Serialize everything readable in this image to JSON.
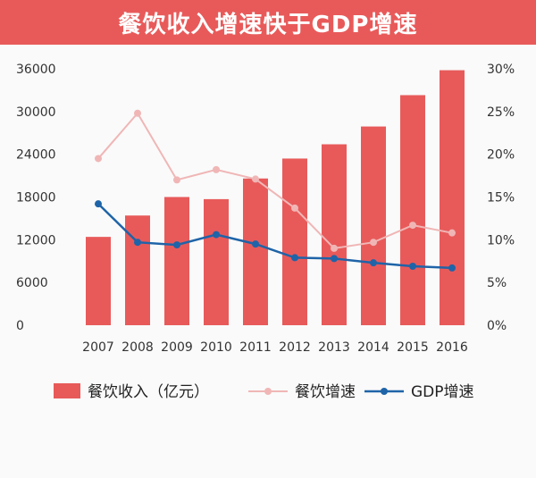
{
  "title": "餐饮收入增速快于GDP增速",
  "colors": {
    "title_bg": "#e85a5a",
    "bar": "#e85a5a",
    "pink_line": "#f0b6b6",
    "blue_line": "#1f64a8"
  },
  "chart_data": {
    "type": "bar",
    "title": "餐饮收入增速快于GDP增速",
    "categories": [
      "2007",
      "2008",
      "2009",
      "2010",
      "2011",
      "2012",
      "2013",
      "2014",
      "2015",
      "2016"
    ],
    "y_left": {
      "ylim": [
        0,
        36000
      ],
      "ticks": [
        "36000",
        "30000",
        "24000",
        "18000",
        "12000",
        "6000",
        "0"
      ],
      "tick_values": [
        36000,
        30000,
        24000,
        18000,
        12000,
        6000,
        0
      ]
    },
    "y_right": {
      "ylim": [
        0,
        30
      ],
      "ticks": [
        "30%",
        "25%",
        "20%",
        "15%",
        "10%",
        "5%",
        "0%"
      ],
      "tick_values": [
        30,
        25,
        20,
        15,
        10,
        5,
        0
      ]
    },
    "series": [
      {
        "name": "餐饮收入（亿元）",
        "kind": "bar",
        "axis": "left",
        "values": [
          12400,
          15400,
          18000,
          17700,
          20600,
          23400,
          25400,
          27900,
          32300,
          35800
        ]
      },
      {
        "name": "餐饮增速",
        "kind": "line",
        "axis": "right",
        "values": [
          19.5,
          24.8,
          17.0,
          18.2,
          17.1,
          13.7,
          9.0,
          9.7,
          11.7,
          10.8
        ]
      },
      {
        "name": "GDP增速",
        "kind": "line",
        "axis": "right",
        "values": [
          14.2,
          9.7,
          9.4,
          10.6,
          9.5,
          7.9,
          7.8,
          7.3,
          6.9,
          6.7
        ]
      }
    ],
    "legend": {
      "position": "bottom",
      "items": [
        "餐饮收入（亿元）",
        "餐饮增速",
        "GDP增速"
      ]
    },
    "grid": false
  }
}
